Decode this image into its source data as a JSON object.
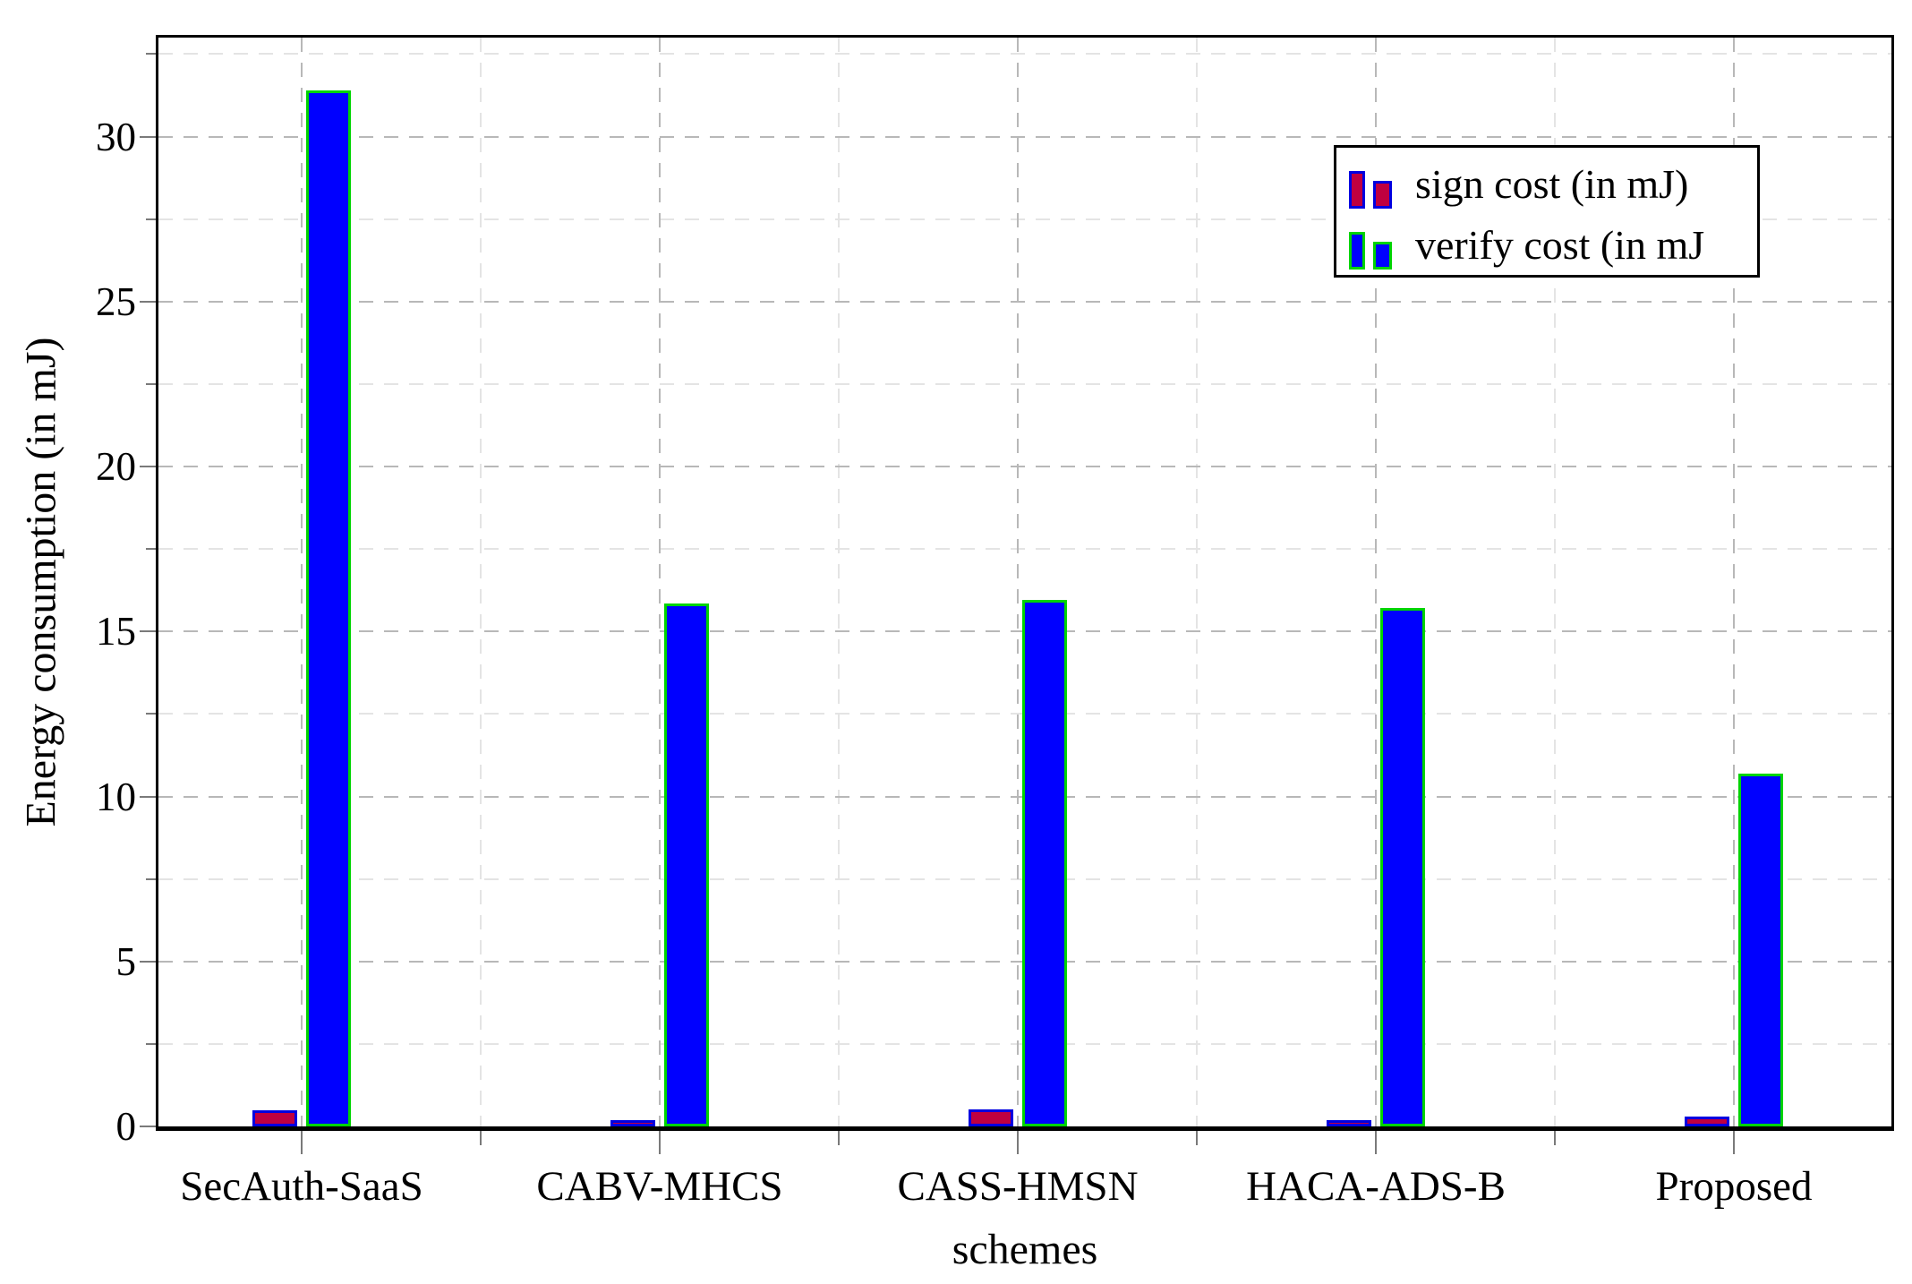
{
  "chart_data": {
    "type": "bar",
    "title": "",
    "categories": [
      "SecAuth-SaaS",
      "CABV-MHCS",
      "CASS-HMSN",
      "HACA-ADS-B",
      "Proposed"
    ],
    "series": [
      {
        "name": "sign cost (in mJ)",
        "values": [
          0.48,
          0.2,
          0.52,
          0.2,
          0.3
        ],
        "fill_color": "#bf0040",
        "border_color": "#0000e0"
      },
      {
        "name": "verify cost (in mJ",
        "values": [
          31.4,
          15.85,
          15.95,
          15.7,
          10.7
        ],
        "fill_color": "#0000ff",
        "border_color": "#00d400"
      }
    ],
    "xlabel": "schemes",
    "ylabel": "Energy consumption (in mJ)",
    "ylim": [
      0,
      33
    ],
    "yticks_major": [
      0,
      5,
      10,
      15,
      20,
      25,
      30
    ],
    "yticks_minor": [
      2.5,
      7.5,
      12.5,
      17.5,
      22.5,
      27.5,
      32.5
    ],
    "grid": "major and minor horizontal + vertical, dashed",
    "legend_position": "top-right"
  },
  "colors": {
    "grid_major": "#b8b8b8",
    "grid_minor": "#e4e4e4",
    "tick": "#7a7a7a",
    "axis_frame": "#000000",
    "background": "#ffffff"
  }
}
